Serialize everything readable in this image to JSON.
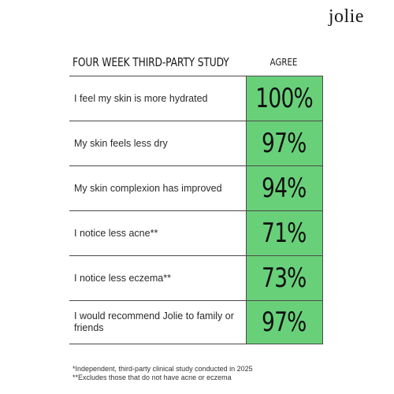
{
  "brand": {
    "logo": "jolie"
  },
  "table": {
    "title": "FOUR WEEK THIRD-PARTY STUDY",
    "column_header": "AGREE",
    "rows": [
      {
        "label": "I feel my skin is more hydrated",
        "value": "100%"
      },
      {
        "label": "My skin feels less dry",
        "value": "97%"
      },
      {
        "label": "My skin complexion has improved",
        "value": "94%"
      },
      {
        "label": "I notice less acne**",
        "value": "71%"
      },
      {
        "label": "I notice less eczema**",
        "value": "73%"
      },
      {
        "label": "I would recommend Jolie to family or friends",
        "value": "97%"
      }
    ]
  },
  "footnotes": {
    "line1": "*Independent, third-party clinical study conducted in 2025",
    "line2": "**Excludes those that do not have acne or eczema"
  },
  "colors": {
    "highlight": "#69d07a",
    "rule": "#4a4a4a",
    "text": "#222222"
  }
}
